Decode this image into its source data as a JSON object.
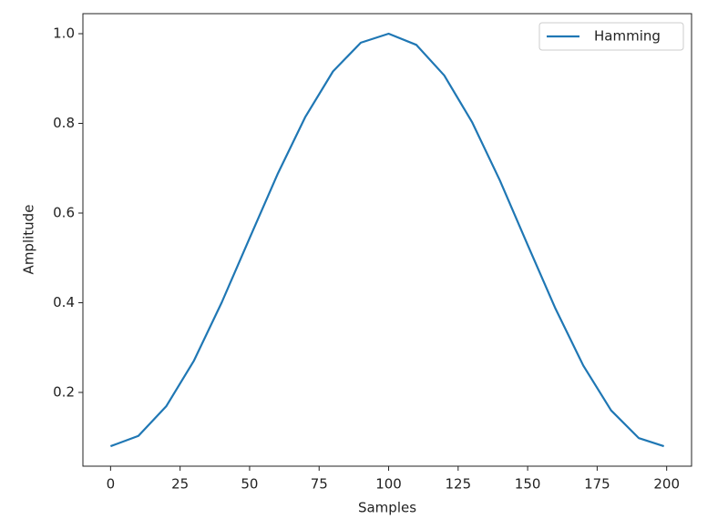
{
  "chart_data": {
    "type": "line",
    "xlabel": "Samples",
    "ylabel": "Amplitude",
    "x": [
      0,
      10,
      20,
      30,
      40,
      50,
      60,
      70,
      80,
      90,
      100,
      110,
      120,
      130,
      140,
      150,
      160,
      170,
      180,
      190,
      199
    ],
    "series": [
      {
        "name": "Hamming",
        "color": "#1f77b4",
        "values": [
          0.08,
          0.103,
          0.169,
          0.271,
          0.401,
          0.544,
          0.686,
          0.814,
          0.916,
          0.98,
          1.0,
          0.975,
          0.907,
          0.803,
          0.673,
          0.529,
          0.387,
          0.26,
          0.16,
          0.098,
          0.08
        ]
      }
    ],
    "xlim": [
      -9.95,
      208.95
    ],
    "ylim": [
      0.0355,
      1.0447
    ],
    "xticks": [
      0,
      25,
      50,
      75,
      100,
      125,
      150,
      175,
      200
    ],
    "yticks": [
      0.2,
      0.4,
      0.6,
      0.8,
      {
        "value": 1.0,
        "label": "1.0"
      }
    ],
    "grid": false,
    "legend": "upper-right"
  }
}
